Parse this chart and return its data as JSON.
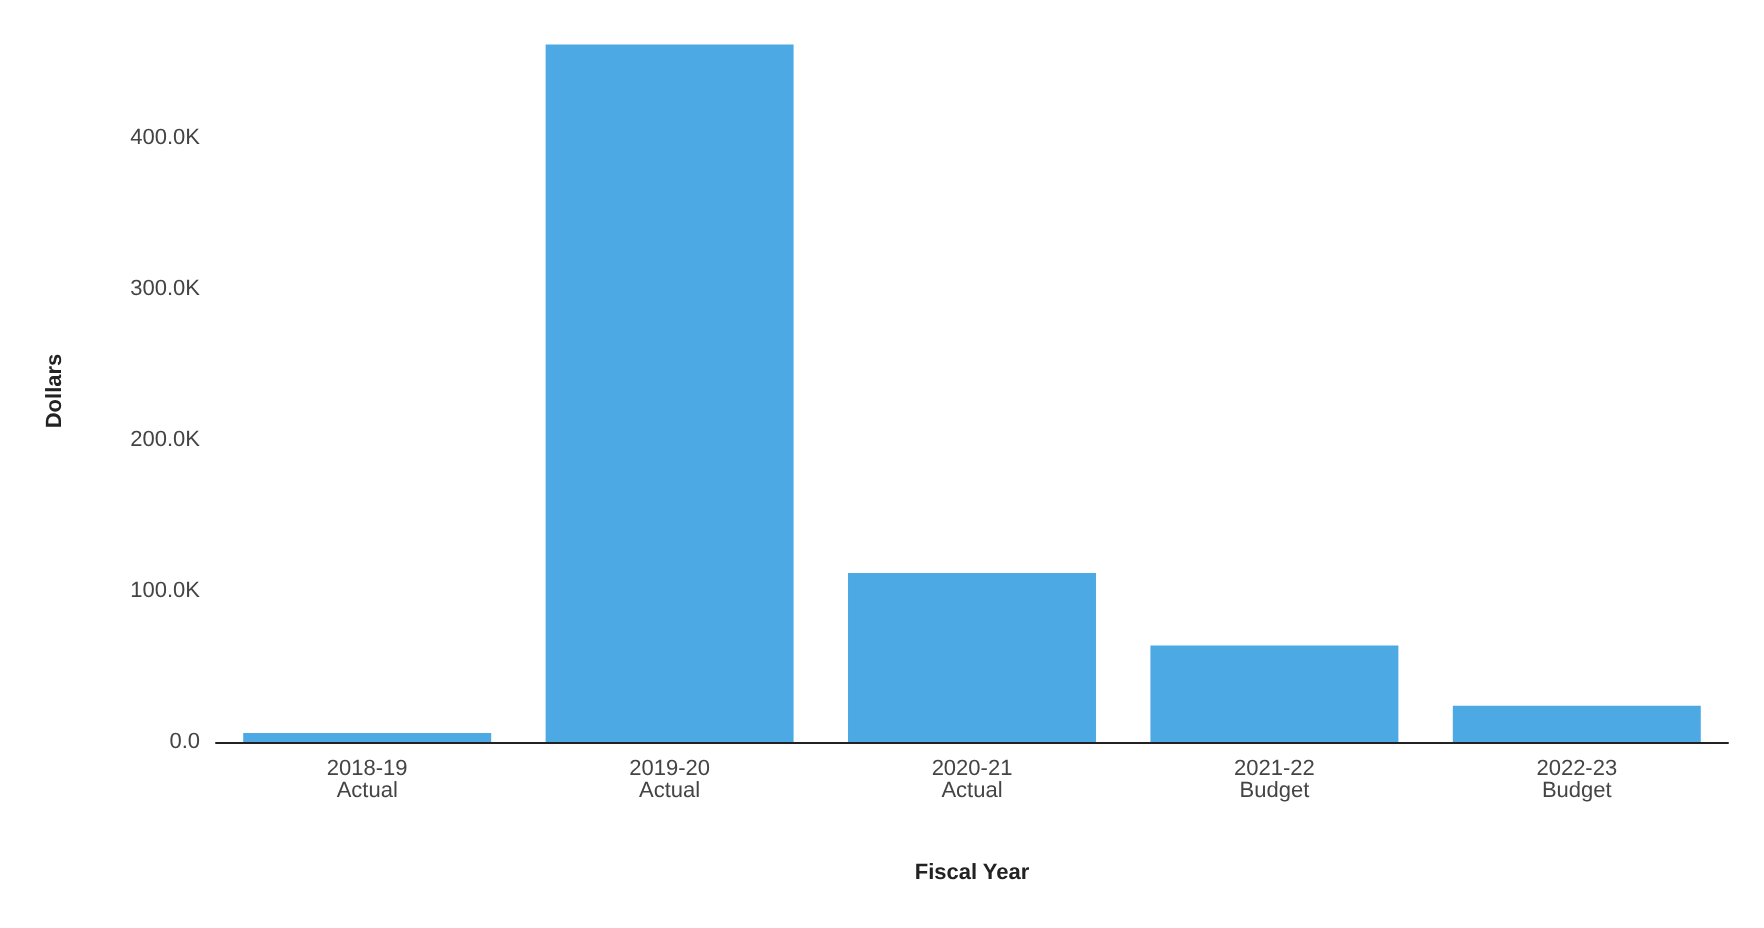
{
  "chart_data": {
    "type": "bar",
    "xlabel": "Fiscal Year",
    "ylabel": "Dollars",
    "categories": [
      "2018-19\nActual",
      "2019-20\nActual",
      "2020-21\nActual",
      "2021-22\nBudget",
      "2022-23\nBudget"
    ],
    "values": [
      6000,
      462000,
      112000,
      64000,
      24000
    ],
    "color": "#4da9e4",
    "ylim": [
      0,
      465000
    ],
    "yticks": [
      {
        "value": 0,
        "label": "0.0"
      },
      {
        "value": 100000,
        "label": "100.0K"
      },
      {
        "value": 200000,
        "label": "200.0K"
      },
      {
        "value": 300000,
        "label": "300.0K"
      },
      {
        "value": 400000,
        "label": "400.0K"
      }
    ],
    "grid": false
  }
}
